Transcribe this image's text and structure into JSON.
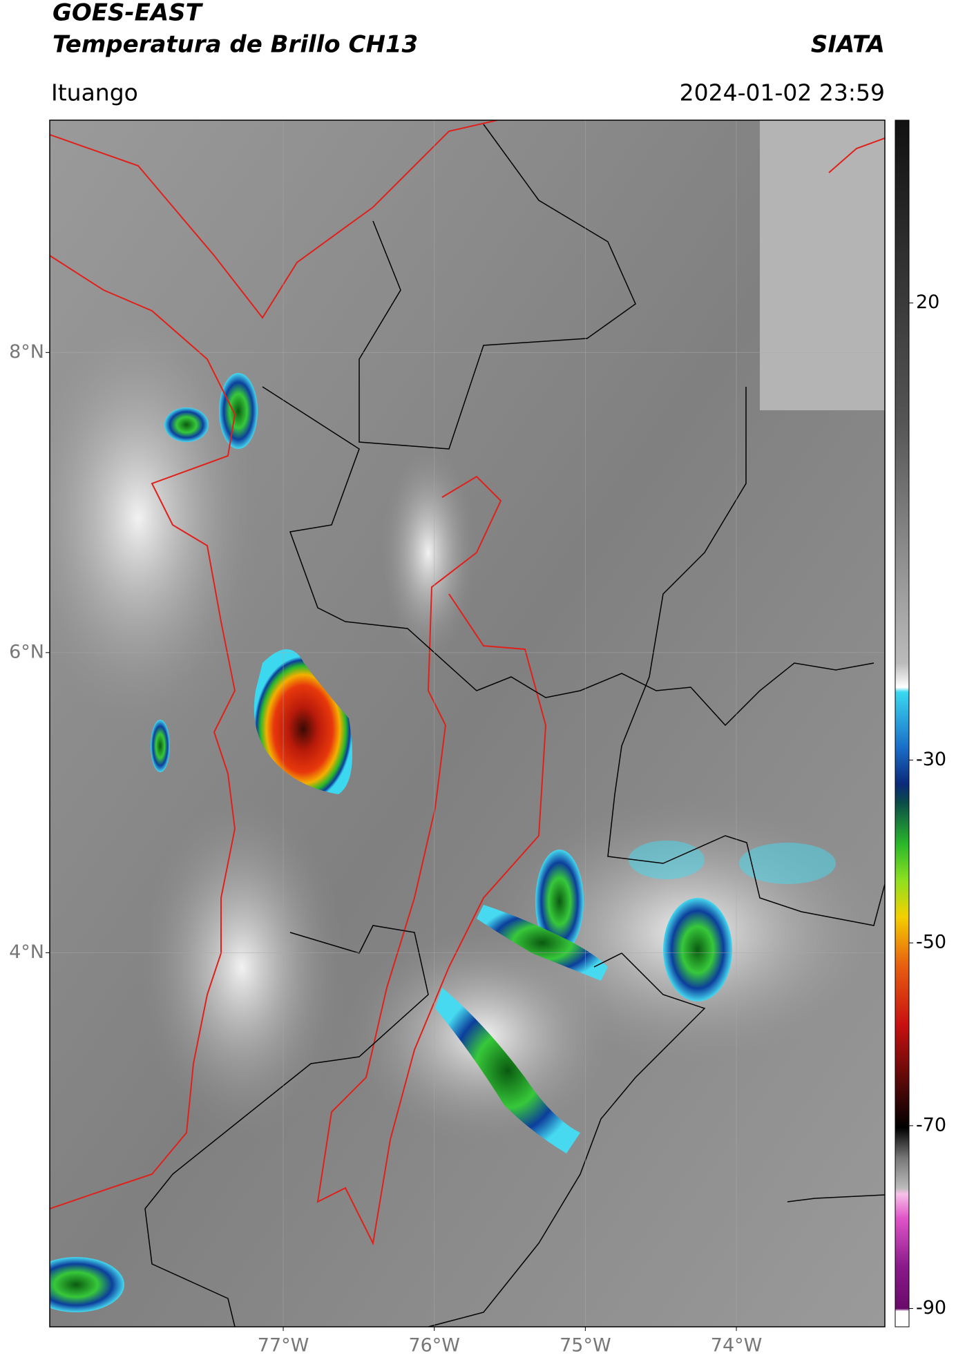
{
  "header": {
    "title": "GOES-EAST",
    "subtitle": "Temperatura de Brillo CH13",
    "source": "SIATA",
    "location": "Ituango",
    "datetime": "2024-01-02 23:59"
  },
  "map": {
    "lat_lim": [
      1.507,
      9.548
    ],
    "lon_lim": [
      -78.546,
      -73.017
    ],
    "lat_ticks": [
      {
        "value": 8,
        "label": "8°N"
      },
      {
        "value": 6,
        "label": "6°N"
      },
      {
        "value": 4,
        "label": "4°N"
      }
    ],
    "lon_ticks": [
      {
        "value": -77,
        "label": "77°W"
      },
      {
        "value": -76,
        "label": "76°W"
      },
      {
        "value": -75,
        "label": "75°W"
      },
      {
        "value": -74,
        "label": "74°W"
      }
    ],
    "grid": true
  },
  "colorbar": {
    "lim": [
      -92,
      40
    ],
    "ticks": [
      20,
      -30,
      -50,
      -70,
      -90
    ]
  }
}
